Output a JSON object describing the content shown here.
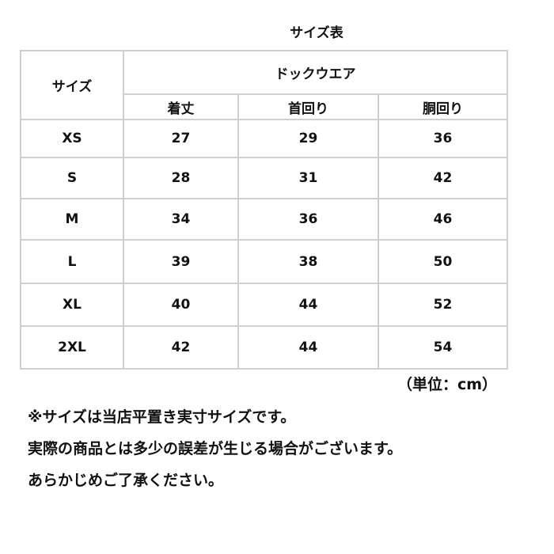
{
  "title": "サイズ表",
  "header": {
    "size": "サイズ",
    "group": "ドックウエア",
    "cols": [
      "着丈",
      "首回り",
      "胴回り"
    ]
  },
  "rows": [
    {
      "size": "XS",
      "values": [
        "27",
        "29",
        "36"
      ]
    },
    {
      "size": "S",
      "values": [
        "28",
        "31",
        "42"
      ]
    },
    {
      "size": "M",
      "values": [
        "34",
        "36",
        "46"
      ]
    },
    {
      "size": "L",
      "values": [
        "39",
        "38",
        "50"
      ]
    },
    {
      "size": "XL",
      "values": [
        "40",
        "44",
        "52"
      ]
    },
    {
      "size": "2XL",
      "values": [
        "42",
        "44",
        "54"
      ]
    }
  ],
  "unit": "（単位：cm）",
  "notes": [
    "※サイズは当店平置き実寸サイズです。",
    "実際の商品とは多少の誤差が生じる場合がございます。",
    "あらかじめご了承ください。"
  ]
}
